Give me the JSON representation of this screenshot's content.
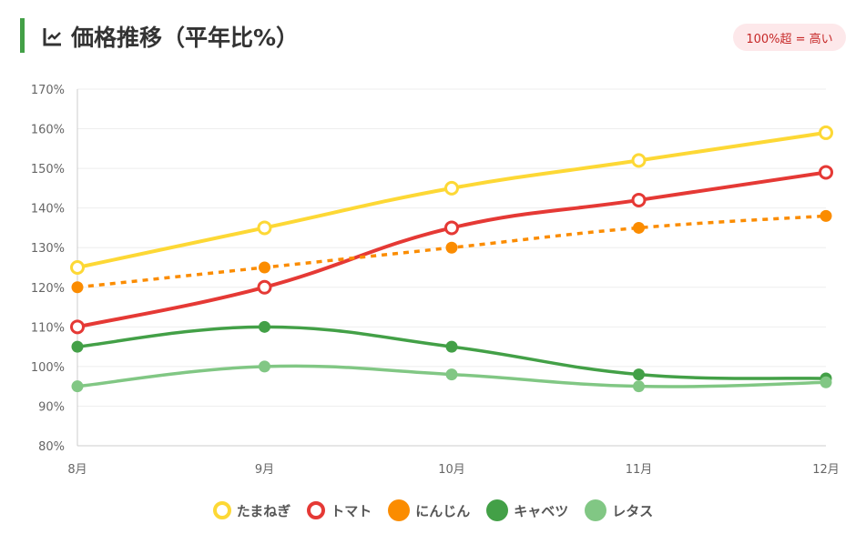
{
  "header": {
    "title": "価格推移（平年比%）",
    "icon": "line-chart-icon",
    "badge": "100%超 = 高い"
  },
  "chart_data": {
    "type": "line",
    "title": "価格推移（平年比%）",
    "categories": [
      "8月",
      "9月",
      "10月",
      "11月",
      "12月"
    ],
    "ylim": [
      80,
      170
    ],
    "yticks": [
      80,
      90,
      100,
      110,
      120,
      130,
      140,
      150,
      160,
      170
    ],
    "ytick_labels": [
      "80%",
      "90%",
      "100%",
      "110%",
      "120%",
      "130%",
      "140%",
      "150%",
      "160%",
      "170%"
    ],
    "grid": true,
    "legend_position": "bottom",
    "series": [
      {
        "name": "たまねぎ",
        "color": "#fdd835",
        "values": [
          125,
          135,
          145,
          152,
          159
        ],
        "marker": "hollow",
        "dashed": false
      },
      {
        "name": "トマト",
        "color": "#e53935",
        "values": [
          110,
          120,
          135,
          142,
          149
        ],
        "marker": "hollow",
        "dashed": false
      },
      {
        "name": "にんじん",
        "color": "#fb8c00",
        "values": [
          120,
          125,
          130,
          135,
          138
        ],
        "marker": "filled",
        "dashed": true
      },
      {
        "name": "キャベツ",
        "color": "#43a047",
        "values": [
          105,
          110,
          105,
          98,
          97
        ],
        "marker": "filled",
        "dashed": false
      },
      {
        "name": "レタス",
        "color": "#81c784",
        "values": [
          95,
          100,
          98,
          95,
          96
        ],
        "marker": "filled",
        "dashed": false
      }
    ]
  }
}
